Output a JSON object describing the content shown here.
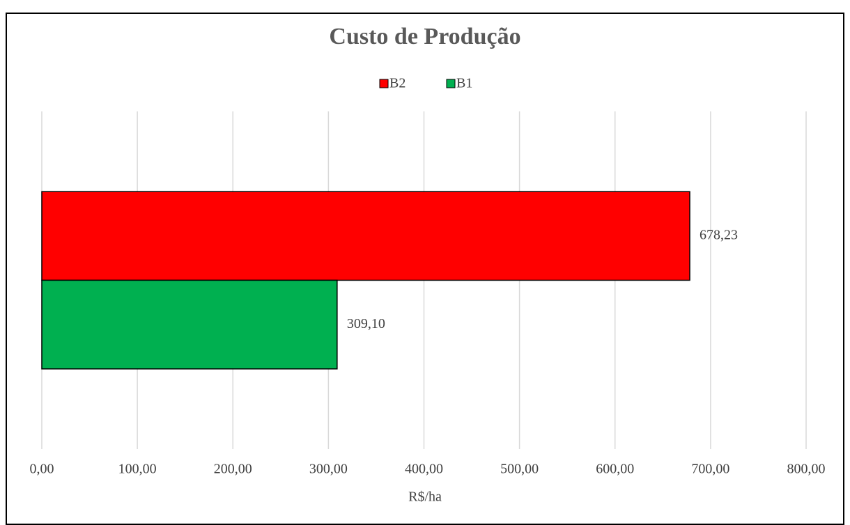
{
  "chart_data": {
    "type": "hbar",
    "title": "Custo de Produção",
    "categories": [
      null
    ],
    "series": [
      {
        "name": "B2",
        "color": "#ff0000",
        "values": [
          678.23
        ],
        "value_labels": [
          "678,23"
        ]
      },
      {
        "name": "B1",
        "color": "#00b050",
        "values": [
          309.1
        ],
        "value_labels": [
          "309,10"
        ]
      }
    ],
    "xlabel": "R$/ha",
    "xlim": [
      0,
      800
    ],
    "xticks": [
      {
        "value": 0,
        "label": "0,00"
      },
      {
        "value": 100,
        "label": "100,00"
      },
      {
        "value": 200,
        "label": "200,00"
      },
      {
        "value": 300,
        "label": "300,00"
      },
      {
        "value": 400,
        "label": "400,00"
      },
      {
        "value": 500,
        "label": "500,00"
      },
      {
        "value": 600,
        "label": "600,00"
      },
      {
        "value": 700,
        "label": "700,00"
      },
      {
        "value": 800,
        "label": "800,00"
      }
    ],
    "grid": true,
    "legend": "top"
  }
}
